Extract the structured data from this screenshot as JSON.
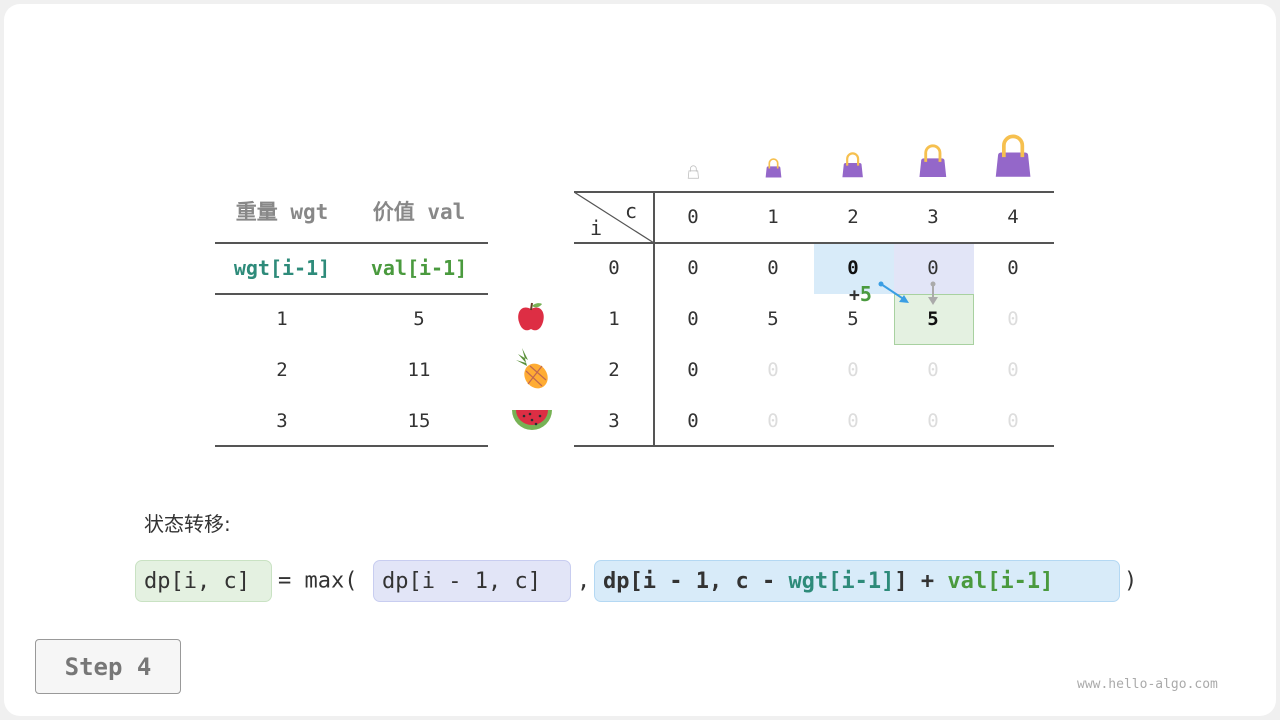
{
  "items_table": {
    "headers": [
      "重量 wgt",
      "价值 val"
    ],
    "subheaders": [
      "wgt[i-1]",
      "val[i-1]"
    ],
    "rows": [
      [
        "1",
        "5"
      ],
      [
        "2",
        "11"
      ],
      [
        "3",
        "15"
      ]
    ],
    "fruit_icons": [
      "apple",
      "pineapple",
      "watermelon"
    ]
  },
  "dp_table": {
    "corner_col": "c",
    "corner_row": "i",
    "col_headers": [
      "0",
      "1",
      "2",
      "3",
      "4"
    ],
    "row_headers": [
      "0",
      "1",
      "2",
      "3"
    ],
    "cells": [
      [
        "0",
        "0",
        "0",
        "0",
        "0"
      ],
      [
        "0",
        "5",
        "5",
        "5",
        "0"
      ],
      [
        "0",
        "0",
        "0",
        "0",
        "0"
      ],
      [
        "0",
        "0",
        "0",
        "0",
        "0"
      ]
    ],
    "filled": [
      [
        true,
        true,
        true,
        true,
        true
      ],
      [
        true,
        true,
        true,
        true,
        false
      ],
      [
        true,
        false,
        false,
        false,
        false
      ],
      [
        true,
        false,
        false,
        false,
        false
      ]
    ],
    "bag_icons": [
      "empty-bag",
      "bag-1",
      "bag-2",
      "bag-3",
      "bag-4"
    ],
    "highlight_from_left": [
      0,
      2
    ],
    "highlight_from_up": [
      0,
      3
    ],
    "highlight_current": [
      1,
      3
    ],
    "plus_label": "+",
    "plus_value": "5"
  },
  "transition": {
    "label": "状态转移:",
    "lhs": "dp[i, c]",
    "eq": "= max(",
    "opt1": "dp[i - 1, c]",
    "comma": ",",
    "opt2_a": "dp[i - 1, c - ",
    "opt2_wgt": "wgt[i-1]",
    "opt2_b": "] + ",
    "opt2_val": "val[i-1]",
    "close": ")"
  },
  "step_label": "Step 4",
  "watermark": "www.hello-algo.com",
  "colors": {
    "wgt": "#2e8b7a",
    "val": "#4a9a3e",
    "blue": "#d8ebf9",
    "purple": "#e2e5f7",
    "green": "#e4f1e1",
    "bag": "#9467c9",
    "handle": "#f6c04f"
  }
}
